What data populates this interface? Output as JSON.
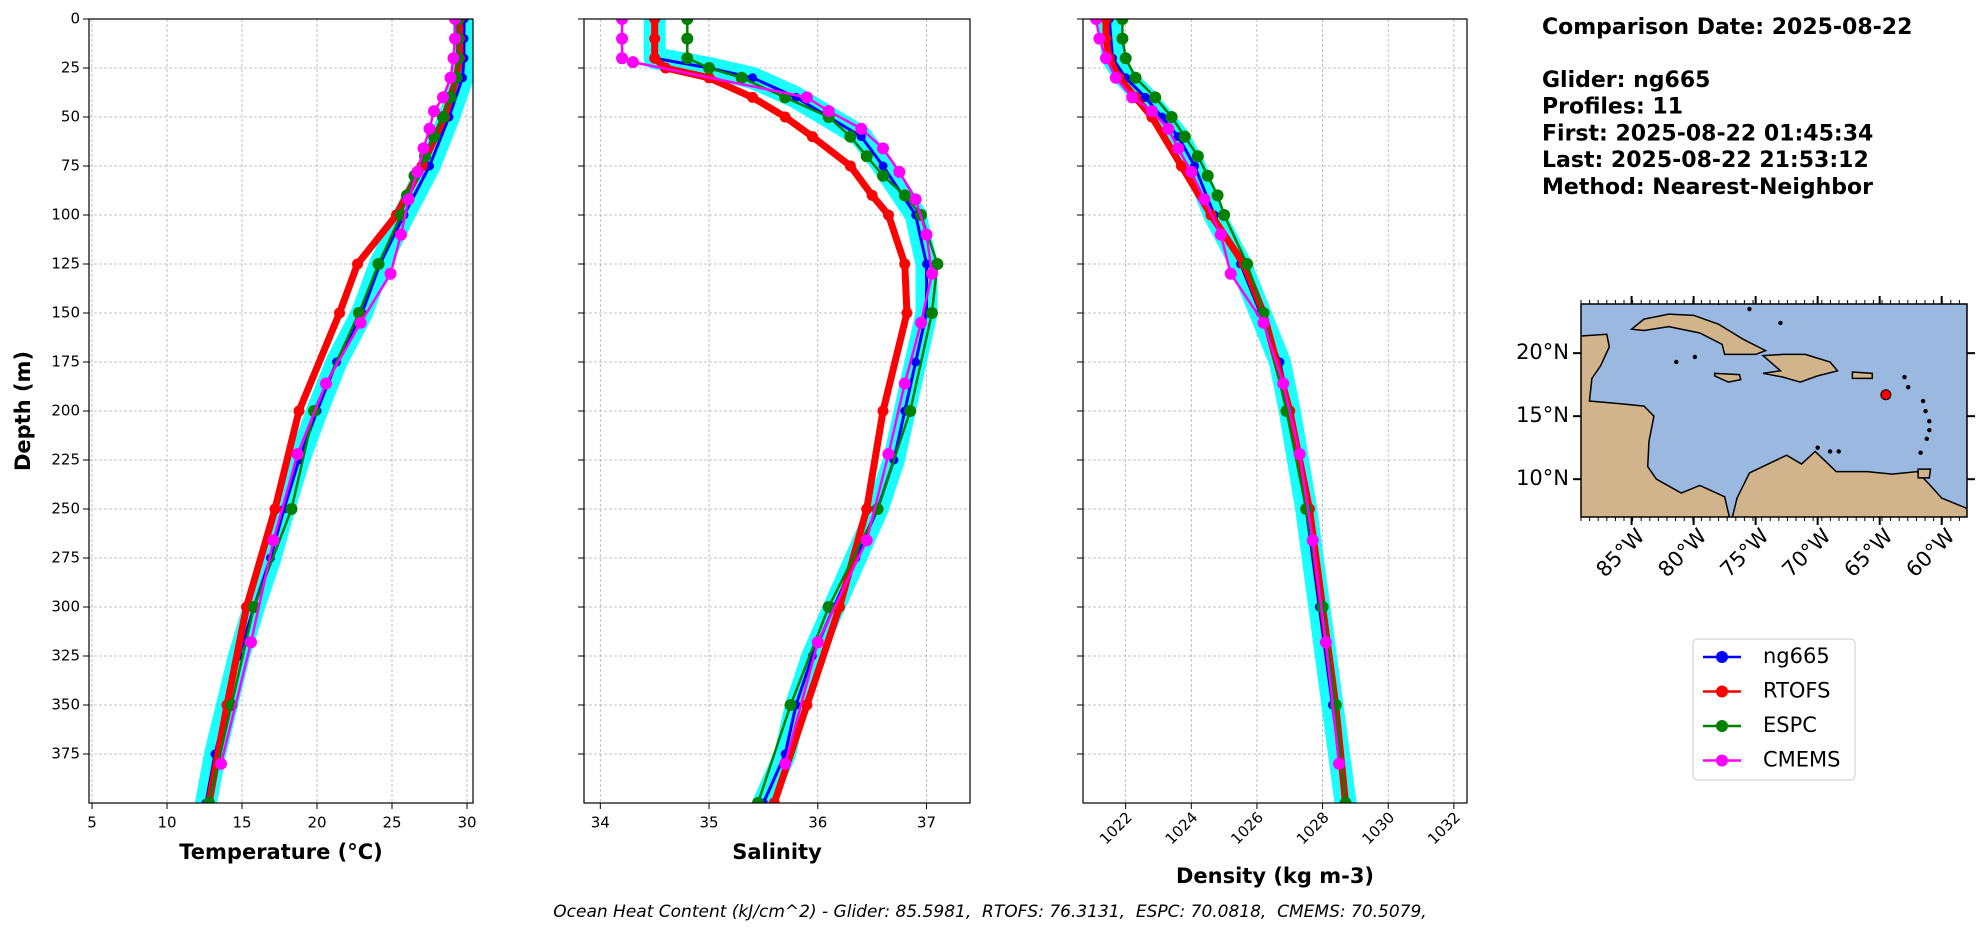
{
  "chart_data": [
    {
      "type": "profile",
      "xlabel": "Temperature (°C)",
      "ylabel": "Depth (m)",
      "xlim": [
        4.8,
        30.4
      ],
      "ylim": [
        0,
        400
      ],
      "y_inverted": true,
      "grid": true,
      "ytick_labels": true,
      "xticks": [
        5,
        10,
        15,
        20,
        25,
        30
      ],
      "yticks": [
        0,
        25,
        50,
        75,
        100,
        125,
        150,
        175,
        200,
        225,
        250,
        275,
        300,
        325,
        350,
        375
      ],
      "series": [
        {
          "name": "ng665",
          "color": "#0000ff",
          "depths": [
            0,
            10,
            20,
            30,
            50,
            75,
            100,
            125,
            150,
            175,
            200,
            225,
            250,
            275,
            300,
            325,
            350,
            375,
            400
          ],
          "values": [
            29.8,
            29.8,
            29.8,
            29.7,
            28.8,
            27.5,
            25.8,
            24.2,
            23.0,
            21.3,
            20.0,
            18.8,
            17.8,
            16.9,
            15.8,
            14.8,
            14.0,
            13.2,
            12.6
          ]
        },
        {
          "name": "RTOFS",
          "color": "#ff0000",
          "depths": [
            0,
            10,
            20,
            30,
            50,
            75,
            100,
            125,
            150,
            200,
            250,
            300,
            350,
            400
          ],
          "values": [
            29.5,
            29.5,
            29.5,
            29.3,
            28.5,
            27.0,
            25.3,
            22.7,
            21.5,
            18.8,
            17.2,
            15.3,
            14.0,
            12.8
          ]
        },
        {
          "name": "ESPC",
          "color": "#008000",
          "depths": [
            0,
            10,
            20,
            30,
            40,
            50,
            60,
            70,
            80,
            90,
            100,
            125,
            150,
            200,
            250,
            300,
            350,
            400
          ],
          "values": [
            29.4,
            29.4,
            29.4,
            29.3,
            28.9,
            28.4,
            27.8,
            27.2,
            26.5,
            26.0,
            25.6,
            24.1,
            22.8,
            19.8,
            18.3,
            15.8,
            14.3,
            12.8
          ]
        },
        {
          "name": "CMEMS",
          "color": "#ff00ff",
          "depths": [
            0,
            10,
            20,
            30,
            40,
            47,
            56,
            66,
            78,
            92,
            110,
            130,
            155,
            186,
            222,
            266,
            318,
            380
          ],
          "values": [
            29.2,
            29.2,
            29.1,
            28.9,
            28.4,
            27.8,
            27.5,
            27.1,
            26.7,
            26.1,
            25.6,
            24.9,
            22.9,
            20.6,
            18.7,
            17.1,
            15.6,
            13.6
          ]
        }
      ]
    },
    {
      "type": "profile",
      "xlabel": "Salinity",
      "xlim": [
        33.85,
        37.4
      ],
      "ylim": [
        0,
        400
      ],
      "y_inverted": true,
      "grid": true,
      "ytick_labels": false,
      "xticks": [
        34,
        35,
        36,
        37
      ],
      "yticks": [
        0,
        25,
        50,
        75,
        100,
        125,
        150,
        175,
        200,
        225,
        250,
        275,
        300,
        325,
        350,
        375
      ],
      "series": [
        {
          "name": "ng665",
          "color": "#0000ff",
          "depths": [
            0,
            10,
            20,
            25,
            30,
            40,
            50,
            60,
            75,
            100,
            125,
            150,
            175,
            200,
            225,
            250,
            275,
            300,
            325,
            350,
            375,
            400
          ],
          "values": [
            34.5,
            34.5,
            34.5,
            35.0,
            35.4,
            35.8,
            36.1,
            36.4,
            36.6,
            36.9,
            37.0,
            37.0,
            36.9,
            36.8,
            36.7,
            36.55,
            36.35,
            36.15,
            35.95,
            35.8,
            35.7,
            35.5
          ]
        },
        {
          "name": "RTOFS",
          "color": "#ff0000",
          "depths": [
            0,
            10,
            20,
            25,
            30,
            40,
            50,
            60,
            75,
            90,
            100,
            125,
            150,
            200,
            250,
            300,
            350,
            400
          ],
          "values": [
            34.5,
            34.5,
            34.5,
            34.6,
            35.0,
            35.4,
            35.7,
            35.95,
            36.3,
            36.5,
            36.65,
            36.8,
            36.82,
            36.6,
            36.45,
            36.2,
            35.9,
            35.6
          ]
        },
        {
          "name": "ESPC",
          "color": "#008000",
          "depths": [
            0,
            10,
            20,
            25,
            30,
            40,
            50,
            60,
            70,
            80,
            90,
            100,
            125,
            150,
            200,
            250,
            300,
            350,
            400
          ],
          "values": [
            34.8,
            34.8,
            34.8,
            35.0,
            35.3,
            35.7,
            36.1,
            36.3,
            36.45,
            36.6,
            36.8,
            36.95,
            37.1,
            37.05,
            36.85,
            36.55,
            36.1,
            35.75,
            35.45
          ]
        },
        {
          "name": "CMEMS",
          "color": "#ff00ff",
          "depths": [
            0,
            10,
            20,
            22,
            40,
            47,
            56,
            66,
            78,
            92,
            110,
            130,
            155,
            186,
            222,
            266,
            318,
            380
          ],
          "values": [
            34.2,
            34.2,
            34.2,
            34.3,
            35.9,
            36.1,
            36.4,
            36.6,
            36.75,
            36.9,
            37.0,
            37.05,
            36.95,
            36.8,
            36.65,
            36.45,
            36.0,
            35.7
          ]
        }
      ]
    },
    {
      "type": "profile",
      "xlabel": "Density (kg m-3)",
      "xlim": [
        1020.7,
        1032.4
      ],
      "ylim": [
        0,
        400
      ],
      "y_inverted": true,
      "grid": true,
      "ytick_labels": false,
      "xtick_rotation": 45,
      "xticks": [
        1022,
        1024,
        1026,
        1028,
        1030,
        1032
      ],
      "yticks": [
        0,
        25,
        50,
        75,
        100,
        125,
        150,
        175,
        200,
        225,
        250,
        275,
        300,
        325,
        350,
        375
      ],
      "series": [
        {
          "name": "ng665",
          "color": "#0000ff",
          "depths": [
            0,
            20,
            30,
            40,
            50,
            60,
            75,
            100,
            125,
            150,
            175,
            200,
            250,
            300,
            350,
            400
          ],
          "values": [
            1021.5,
            1021.6,
            1022.0,
            1022.6,
            1023.1,
            1023.6,
            1024.1,
            1024.7,
            1025.5,
            1026.1,
            1026.7,
            1027.0,
            1027.5,
            1027.9,
            1028.3,
            1028.7
          ]
        },
        {
          "name": "RTOFS",
          "color": "#ff0000",
          "depths": [
            0,
            10,
            20,
            30,
            40,
            50,
            75,
            100,
            125,
            150,
            200,
            250,
            300,
            350,
            400
          ],
          "values": [
            1021.4,
            1021.4,
            1021.5,
            1021.8,
            1022.3,
            1022.8,
            1023.7,
            1024.6,
            1025.6,
            1026.2,
            1027.0,
            1027.6,
            1028.0,
            1028.4,
            1028.7
          ]
        },
        {
          "name": "ESPC",
          "color": "#008000",
          "depths": [
            0,
            10,
            20,
            30,
            40,
            50,
            60,
            70,
            80,
            90,
            100,
            125,
            150,
            200,
            250,
            300,
            350,
            400
          ],
          "values": [
            1021.9,
            1021.9,
            1022.0,
            1022.3,
            1022.9,
            1023.4,
            1023.8,
            1024.2,
            1024.5,
            1024.8,
            1025.0,
            1025.7,
            1026.2,
            1026.9,
            1027.5,
            1028.0,
            1028.4,
            1028.7
          ]
        },
        {
          "name": "CMEMS",
          "color": "#ff00ff",
          "depths": [
            0,
            10,
            20,
            30,
            40,
            47,
            56,
            66,
            78,
            92,
            110,
            130,
            155,
            186,
            222,
            266,
            318,
            380
          ],
          "values": [
            1021.1,
            1021.2,
            1021.4,
            1021.7,
            1022.2,
            1022.8,
            1023.3,
            1023.6,
            1024.0,
            1024.4,
            1024.9,
            1025.2,
            1026.2,
            1026.8,
            1027.3,
            1027.7,
            1028.1,
            1028.5
          ]
        }
      ]
    },
    {
      "type": "map",
      "xlim": [
        -89.08,
        -57.96
      ],
      "ylim": [
        7.0,
        23.9
      ],
      "ocean_color": "#9ab8e0",
      "land_color": "#d2b48c",
      "xticks": [
        {
          "value": -85,
          "label": "85°W"
        },
        {
          "value": -80,
          "label": "80°W"
        },
        {
          "value": -75,
          "label": "75°W"
        },
        {
          "value": -70,
          "label": "70°W"
        },
        {
          "value": -65,
          "label": "65°W"
        },
        {
          "value": -60,
          "label": "60°W"
        }
      ],
      "yticks": [
        {
          "value": 10,
          "label": "10°N"
        },
        {
          "value": 15,
          "label": "15°N"
        },
        {
          "value": 20,
          "label": "20°N"
        }
      ],
      "points": {
        "x": [
          -64.5
        ],
        "y": [
          16.7
        ],
        "color": "#ff0000"
      }
    }
  ],
  "info": {
    "title": "Comparison Date: 2025-08-22",
    "lines": [
      "Glider: ng665",
      "Profiles: 11",
      "First: 2025-08-22 01:45:34",
      "Last: 2025-08-22 21:53:12",
      "Method: Nearest-Neighbor"
    ]
  },
  "footer": "Ocean Heat Content (kJ/cm^2) - Glider: 85.5981,  RTOFS: 76.3131,  ESPC: 70.0818,  CMEMS: 70.5079,"
}
